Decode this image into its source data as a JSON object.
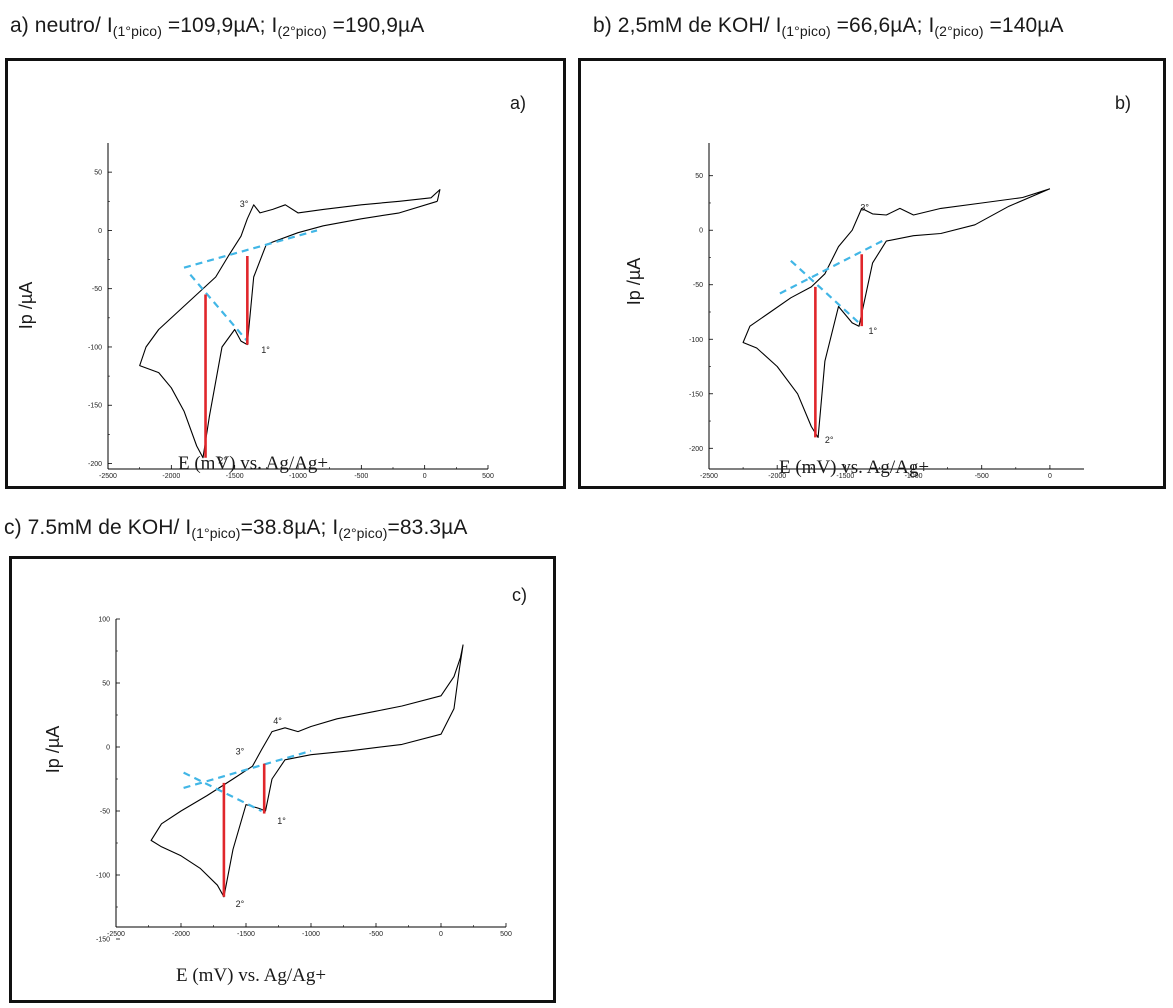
{
  "captions": [
    {
      "prefix": "a) neutro/ ",
      "i1_label": "I",
      "i1_sub": "(1°pico)",
      "i1_value": " =109,9µA; ",
      "i2_label": "I",
      "i2_sub": "(2°pico)",
      "i2_value": " =190,9µA"
    },
    {
      "prefix": "b) 2,5mM de KOH/ ",
      "i1_label": "I",
      "i1_sub": "(1°pico)",
      "i1_value": " =66,6µA; ",
      "i2_label": "I",
      "i2_sub": "(2°pico)",
      "i2_value": " =140µA"
    },
    {
      "prefix": "c) 7.5mM de KOH/  ",
      "i1_label": "I",
      "i1_sub": "(1°pico)",
      "i1_value": "=38.8µA; ",
      "i2_label": "I",
      "i2_sub": "(2°pico)",
      "i2_value": "=83.3µA"
    }
  ],
  "colors": {
    "curve": "#000000",
    "baseline": "#41b6e6",
    "peak_line": "#e0262b",
    "frame": "#111111"
  },
  "chart_data": [
    {
      "type": "line",
      "panel_label": "a)",
      "xlabel": "E (mV) vs. Ag/Ag+",
      "ylabel": "Ip /µA",
      "xlim": [
        -2500,
        500
      ],
      "ylim": [
        -215,
        75
      ],
      "xticks": [
        -2500,
        -2000,
        -1500,
        -1000,
        -500,
        0,
        500
      ],
      "yticks": [
        -200,
        -150,
        -100,
        -50,
        0,
        50
      ],
      "cv_curve": [
        [
          100,
          25
        ],
        [
          -200,
          15
        ],
        [
          -500,
          10
        ],
        [
          -800,
          4
        ],
        [
          -1000,
          -2
        ],
        [
          -1250,
          -12
        ],
        [
          -1350,
          -40
        ],
        [
          -1400,
          -98
        ],
        [
          -1450,
          -95
        ],
        [
          -1500,
          -85
        ],
        [
          -1600,
          -100
        ],
        [
          -1700,
          -160
        ],
        [
          -1750,
          -195
        ],
        [
          -1800,
          -185
        ],
        [
          -1900,
          -155
        ],
        [
          -2000,
          -135
        ],
        [
          -2100,
          -122
        ],
        [
          -2250,
          -116
        ],
        [
          -2200,
          -100
        ],
        [
          -2100,
          -85
        ],
        [
          -1950,
          -70
        ],
        [
          -1800,
          -55
        ],
        [
          -1650,
          -40
        ],
        [
          -1550,
          -22
        ],
        [
          -1450,
          -5
        ],
        [
          -1400,
          10
        ],
        [
          -1350,
          22
        ],
        [
          -1300,
          15
        ],
        [
          -1200,
          18
        ],
        [
          -1100,
          22
        ],
        [
          -1000,
          15
        ],
        [
          -800,
          18
        ],
        [
          -500,
          22
        ],
        [
          -200,
          25
        ],
        [
          50,
          28
        ],
        [
          120,
          35
        ],
        [
          100,
          25
        ]
      ],
      "baseline_lines": [
        [
          [
            -1900,
            -32
          ],
          [
            -850,
            0
          ]
        ],
        [
          [
            -1850,
            -38
          ],
          [
            -1400,
            -95
          ]
        ]
      ],
      "peak_lines": [
        [
          [
            -1400,
            -22
          ],
          [
            -1400,
            -98
          ]
        ],
        [
          [
            -1730,
            -55
          ],
          [
            -1730,
            -195
          ]
        ]
      ],
      "peak_labels": [
        {
          "text": "1°",
          "x": -1290,
          "y": -105
        },
        {
          "text": "2°",
          "x": -1630,
          "y": -200
        },
        {
          "text": "3°",
          "x": -1460,
          "y": 20
        }
      ]
    },
    {
      "type": "line",
      "panel_label": "b)",
      "xlabel": "E (mV) vs. Ag/Ag+",
      "ylabel": "Ip /µA",
      "xlim": [
        -2500,
        250
      ],
      "ylim": [
        -230,
        80
      ],
      "xticks": [
        -2500,
        -2000,
        -1500,
        -1000,
        -500,
        0
      ],
      "yticks": [
        -200,
        -150,
        -100,
        -50,
        0,
        50
      ],
      "cv_curve": [
        [
          0,
          38
        ],
        [
          -300,
          22
        ],
        [
          -550,
          5
        ],
        [
          -800,
          -3
        ],
        [
          -1000,
          -5
        ],
        [
          -1200,
          -10
        ],
        [
          -1300,
          -30
        ],
        [
          -1400,
          -88
        ],
        [
          -1450,
          -85
        ],
        [
          -1550,
          -70
        ],
        [
          -1650,
          -120
        ],
        [
          -1700,
          -190
        ],
        [
          -1750,
          -180
        ],
        [
          -1850,
          -150
        ],
        [
          -2000,
          -125
        ],
        [
          -2150,
          -108
        ],
        [
          -2250,
          -103
        ],
        [
          -2200,
          -88
        ],
        [
          -2050,
          -75
        ],
        [
          -1900,
          -62
        ],
        [
          -1750,
          -52
        ],
        [
          -1650,
          -40
        ],
        [
          -1550,
          -15
        ],
        [
          -1450,
          0
        ],
        [
          -1380,
          20
        ],
        [
          -1300,
          15
        ],
        [
          -1200,
          14
        ],
        [
          -1100,
          20
        ],
        [
          -1000,
          14
        ],
        [
          -800,
          20
        ],
        [
          -500,
          25
        ],
        [
          -200,
          30
        ],
        [
          0,
          38
        ]
      ],
      "baseline_lines": [
        [
          [
            -1980,
            -58
          ],
          [
            -1200,
            -8
          ]
        ],
        [
          [
            -1900,
            -28
          ],
          [
            -1400,
            -85
          ]
        ]
      ],
      "peak_lines": [
        [
          [
            -1380,
            -22
          ],
          [
            -1380,
            -88
          ]
        ],
        [
          [
            -1720,
            -52
          ],
          [
            -1720,
            -190
          ]
        ]
      ],
      "peak_labels": [
        {
          "text": "1°",
          "x": -1330,
          "y": -95
        },
        {
          "text": "2°",
          "x": -1650,
          "y": -195
        },
        {
          "text": "3°",
          "x": -1390,
          "y": 18
        }
      ]
    },
    {
      "type": "line",
      "panel_label": "c)",
      "xlabel": "E (mV) vs. Ag/Ag+",
      "ylabel": "Ip /µA",
      "xlim": [
        -2500,
        500
      ],
      "ylim": [
        -150,
        100
      ],
      "xticks": [
        -2500,
        -2000,
        -1500,
        -1000,
        -500,
        0,
        500
      ],
      "yticks": [
        -150,
        -100,
        -50,
        0,
        50,
        100
      ],
      "cv_curve": [
        [
          170,
          80
        ],
        [
          140,
          60
        ],
        [
          100,
          30
        ],
        [
          0,
          10
        ],
        [
          -300,
          2
        ],
        [
          -700,
          -3
        ],
        [
          -1000,
          -6
        ],
        [
          -1200,
          -10
        ],
        [
          -1300,
          -25
        ],
        [
          -1350,
          -50
        ],
        [
          -1400,
          -48
        ],
        [
          -1500,
          -45
        ],
        [
          -1600,
          -80
        ],
        [
          -1670,
          -117
        ],
        [
          -1720,
          -108
        ],
        [
          -1850,
          -95
        ],
        [
          -2000,
          -85
        ],
        [
          -2150,
          -78
        ],
        [
          -2230,
          -73
        ],
        [
          -2150,
          -60
        ],
        [
          -2000,
          -50
        ],
        [
          -1800,
          -38
        ],
        [
          -1600,
          -25
        ],
        [
          -1450,
          -15
        ],
        [
          -1380,
          -2
        ],
        [
          -1300,
          12
        ],
        [
          -1200,
          15
        ],
        [
          -1100,
          12
        ],
        [
          -1000,
          16
        ],
        [
          -800,
          22
        ],
        [
          -500,
          28
        ],
        [
          -300,
          32
        ],
        [
          0,
          40
        ],
        [
          100,
          55
        ],
        [
          150,
          70
        ],
        [
          170,
          80
        ]
      ],
      "baseline_lines": [
        [
          [
            -1980,
            -32
          ],
          [
            -1000,
            -3
          ]
        ],
        [
          [
            -1980,
            -20
          ],
          [
            -1380,
            -50
          ]
        ]
      ],
      "peak_lines": [
        [
          [
            -1360,
            -13
          ],
          [
            -1360,
            -52
          ]
        ],
        [
          [
            -1670,
            -28
          ],
          [
            -1670,
            -117
          ]
        ]
      ],
      "peak_labels": [
        {
          "text": "1°",
          "x": -1260,
          "y": -60
        },
        {
          "text": "2°",
          "x": -1580,
          "y": -125
        },
        {
          "text": "3°",
          "x": -1580,
          "y": -6
        },
        {
          "text": "4°",
          "x": -1290,
          "y": 18
        }
      ]
    }
  ]
}
